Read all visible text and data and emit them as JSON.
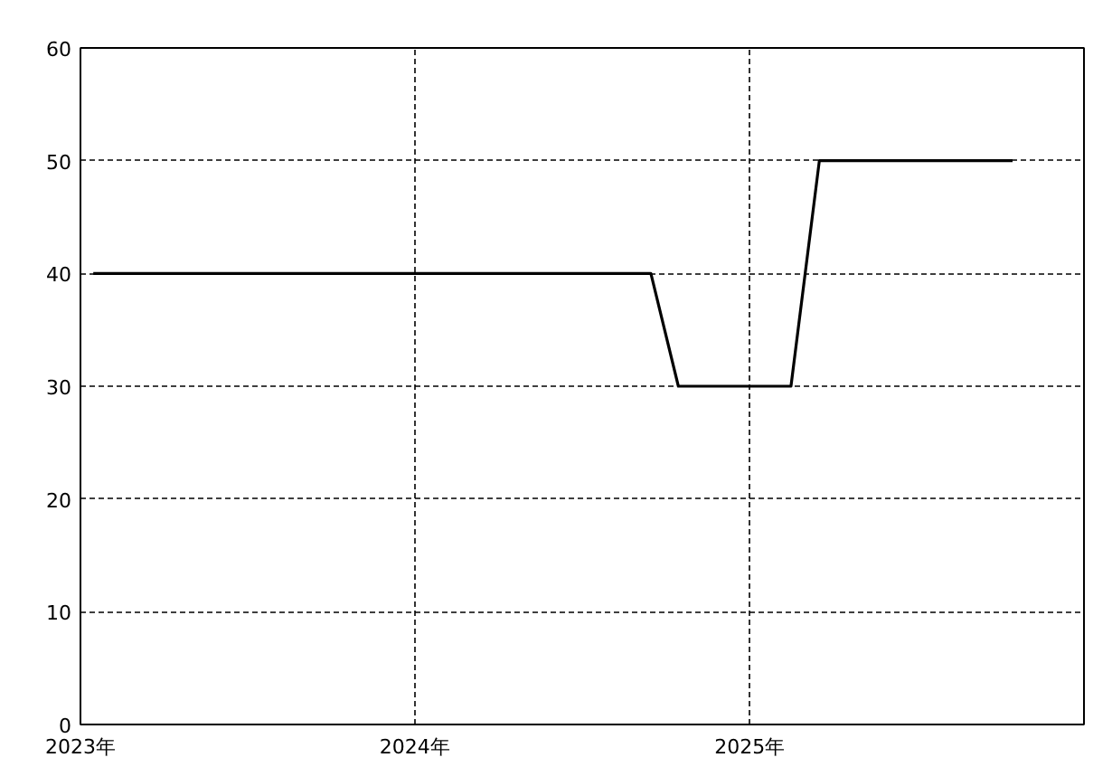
{
  "chart_data": {
    "type": "line",
    "x": [
      "2023-01-15",
      "2024-09-15",
      "2024-10-15",
      "2025-02-15",
      "2025-03-18",
      "2025-10-15"
    ],
    "series": [
      {
        "color": "#000000",
        "values": [
          40,
          40,
          30,
          30,
          50,
          50
        ]
      }
    ],
    "xlim": [
      "2023-01-01",
      "2026-01-01"
    ],
    "xticks": [
      {
        "value": "2023-01-01",
        "label": "2023年"
      },
      {
        "value": "2024-01-01",
        "label": "2024年"
      },
      {
        "value": "2025-01-01",
        "label": "2025年"
      }
    ],
    "ylim": [
      0,
      60
    ],
    "yticks": [
      0,
      10,
      20,
      30,
      40,
      50,
      60
    ],
    "grid": true,
    "marker": "none",
    "line_style": "solid"
  }
}
